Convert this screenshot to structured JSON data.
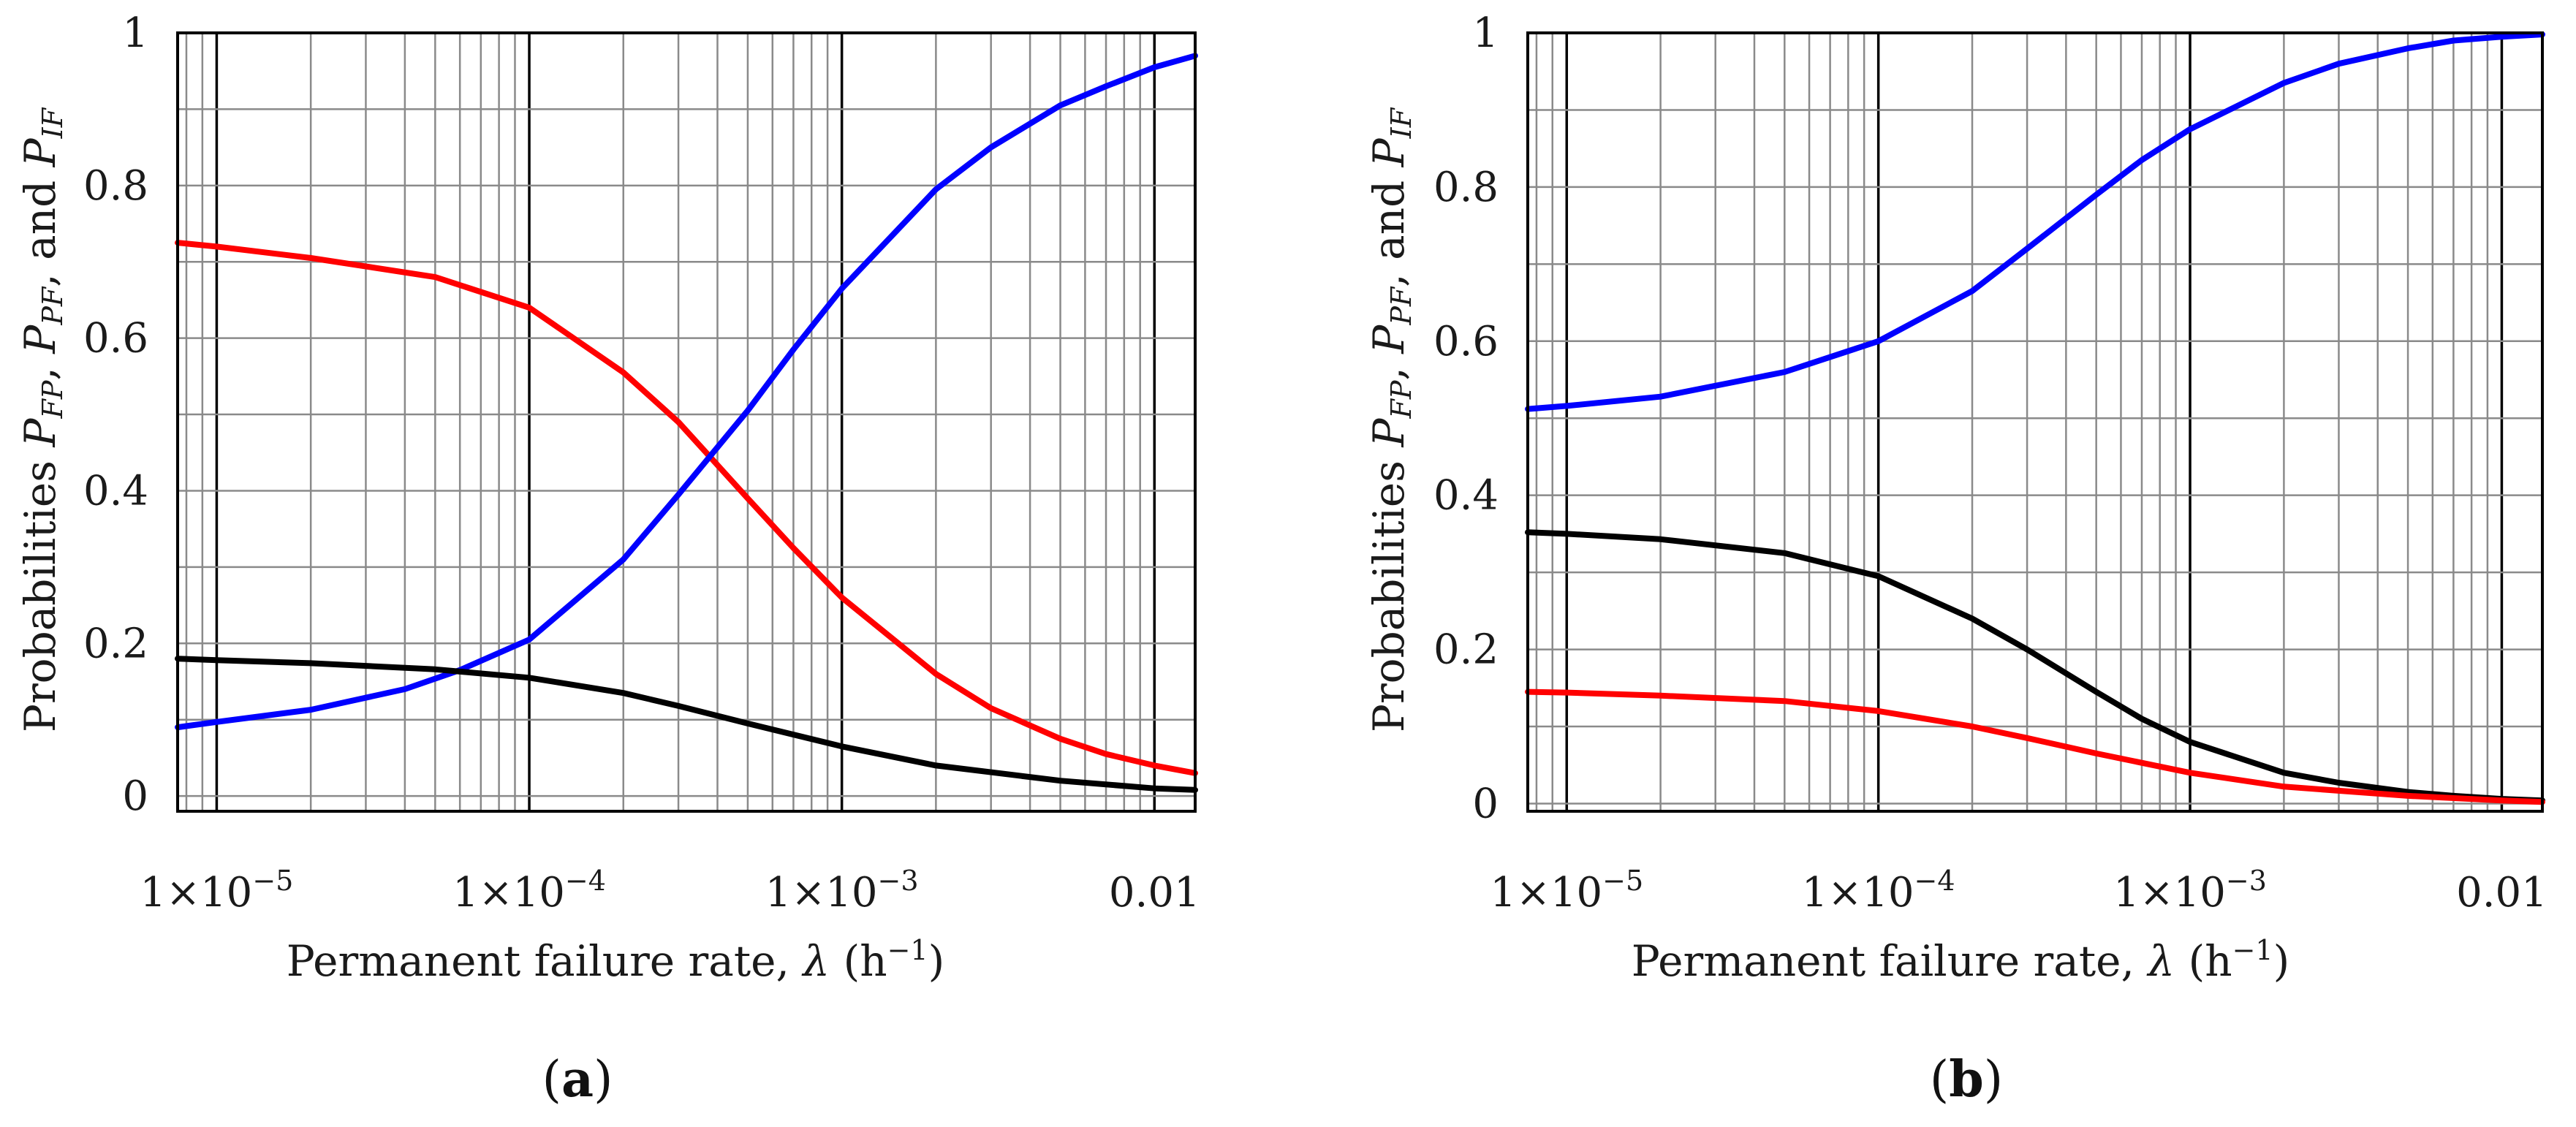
{
  "figure": {
    "panel_labels": [
      {
        "open": "(",
        "letter": "a",
        "close": ")"
      },
      {
        "open": "(",
        "letter": "b",
        "close": ")"
      }
    ]
  },
  "chart_data": [
    {
      "type": "line",
      "panel": "a",
      "xscale": "log",
      "xlim": [
        7.5e-06,
        0.0135
      ],
      "ylim": [
        -0.02,
        1.0
      ],
      "xticks": [
        {
          "value": 1e-05,
          "mant": "1×10",
          "exp": "−5"
        },
        {
          "value": 0.0001,
          "mant": "1×10",
          "exp": "−4"
        },
        {
          "value": 0.001,
          "mant": "1×10",
          "exp": "−3"
        },
        {
          "value": 0.01,
          "mant": "0.01",
          "exp": ""
        }
      ],
      "yticks": [
        {
          "value": 0,
          "label": "0"
        },
        {
          "value": 0.2,
          "label": "0.2"
        },
        {
          "value": 0.4,
          "label": "0.4"
        },
        {
          "value": 0.6,
          "label": "0.6"
        },
        {
          "value": 0.8,
          "label": "0.8"
        },
        {
          "value": 1,
          "label": "1"
        }
      ],
      "grid": true,
      "xlabel": {
        "text": "Permanent failure rate, ",
        "symbol": "λ",
        "unit_open": " (h",
        "unit_exp": "−1",
        "unit_close": ")"
      },
      "ylabel": {
        "prefix": "Probabilities ",
        "s1": "P",
        "s1sub": "FP",
        "sep1": ", ",
        "s2": "P",
        "s2sub": "PF",
        "sep2": ", and ",
        "s3": "P",
        "s3sub": "IF"
      },
      "series": [
        {
          "name": "red",
          "color": "#ff0000",
          "x": [
            7.5e-06,
            1e-05,
            2e-05,
            5e-05,
            0.0001,
            0.0002,
            0.0003,
            0.0005,
            0.0007,
            0.001,
            0.002,
            0.003,
            0.005,
            0.007,
            0.01,
            0.0135
          ],
          "y": [
            0.725,
            0.72,
            0.705,
            0.68,
            0.64,
            0.555,
            0.49,
            0.39,
            0.325,
            0.26,
            0.16,
            0.115,
            0.075,
            0.055,
            0.04,
            0.03
          ]
        },
        {
          "name": "blue",
          "color": "#0000ff",
          "x": [
            7.5e-06,
            1e-05,
            2e-05,
            4e-05,
            6e-05,
            0.0001,
            0.0002,
            0.0003,
            0.0005,
            0.0007,
            0.001,
            0.002,
            0.003,
            0.005,
            0.007,
            0.01,
            0.0135
          ],
          "y": [
            0.09,
            0.097,
            0.113,
            0.14,
            0.165,
            0.205,
            0.31,
            0.395,
            0.505,
            0.585,
            0.665,
            0.795,
            0.85,
            0.905,
            0.93,
            0.955,
            0.97
          ]
        },
        {
          "name": "black",
          "color": "#000000",
          "x": [
            7.5e-06,
            1e-05,
            2e-05,
            5e-05,
            0.0001,
            0.0002,
            0.0003,
            0.0005,
            0.001,
            0.002,
            0.005,
            0.01,
            0.0135
          ],
          "y": [
            0.18,
            0.178,
            0.174,
            0.166,
            0.155,
            0.135,
            0.118,
            0.095,
            0.065,
            0.04,
            0.02,
            0.01,
            0.008
          ]
        }
      ]
    },
    {
      "type": "line",
      "panel": "b",
      "xscale": "log",
      "xlim": [
        7.5e-06,
        0.0135
      ],
      "ylim": [
        -0.01,
        1.0
      ],
      "xticks": [
        {
          "value": 1e-05,
          "mant": "1×10",
          "exp": "−5"
        },
        {
          "value": 0.0001,
          "mant": "1×10",
          "exp": "−4"
        },
        {
          "value": 0.001,
          "mant": "1×10",
          "exp": "−3"
        },
        {
          "value": 0.01,
          "mant": "0.01",
          "exp": ""
        }
      ],
      "yticks": [
        {
          "value": 0,
          "label": "0"
        },
        {
          "value": 0.2,
          "label": "0.2"
        },
        {
          "value": 0.4,
          "label": "0.4"
        },
        {
          "value": 0.6,
          "label": "0.6"
        },
        {
          "value": 0.8,
          "label": "0.8"
        },
        {
          "value": 1,
          "label": "1"
        }
      ],
      "grid": true,
      "xlabel": {
        "text": "Permanent failure rate, ",
        "symbol": "λ",
        "unit_open": " (h",
        "unit_exp": "−1",
        "unit_close": ")"
      },
      "ylabel": {
        "prefix": "Probabilities ",
        "s1": "P",
        "s1sub": "FP",
        "sep1": ", ",
        "s2": "P",
        "s2sub": "PF",
        "sep2": ", and ",
        "s3": "P",
        "s3sub": "IF"
      },
      "series": [
        {
          "name": "blue",
          "color": "#0000ff",
          "x": [
            7.5e-06,
            1e-05,
            2e-05,
            5e-05,
            0.0001,
            0.0002,
            0.0003,
            0.0005,
            0.0007,
            0.001,
            0.002,
            0.003,
            0.005,
            0.007,
            0.01,
            0.0135
          ],
          "y": [
            0.512,
            0.516,
            0.528,
            0.56,
            0.6,
            0.665,
            0.72,
            0.79,
            0.835,
            0.875,
            0.935,
            0.96,
            0.98,
            0.99,
            0.995,
            0.998
          ]
        },
        {
          "name": "black",
          "color": "#000000",
          "x": [
            7.5e-06,
            1e-05,
            2e-05,
            5e-05,
            0.0001,
            0.0002,
            0.0003,
            0.0005,
            0.0007,
            0.001,
            0.002,
            0.003,
            0.005,
            0.007,
            0.01,
            0.0135
          ],
          "y": [
            0.352,
            0.35,
            0.343,
            0.325,
            0.295,
            0.24,
            0.2,
            0.145,
            0.11,
            0.08,
            0.04,
            0.027,
            0.015,
            0.01,
            0.006,
            0.004
          ]
        },
        {
          "name": "red",
          "color": "#ff0000",
          "x": [
            7.5e-06,
            1e-05,
            2e-05,
            5e-05,
            0.0001,
            0.0002,
            0.0003,
            0.0005,
            0.001,
            0.002,
            0.005,
            0.01,
            0.0135
          ],
          "y": [
            0.145,
            0.144,
            0.14,
            0.133,
            0.12,
            0.1,
            0.085,
            0.065,
            0.04,
            0.022,
            0.01,
            0.004,
            0.002
          ]
        }
      ]
    }
  ]
}
